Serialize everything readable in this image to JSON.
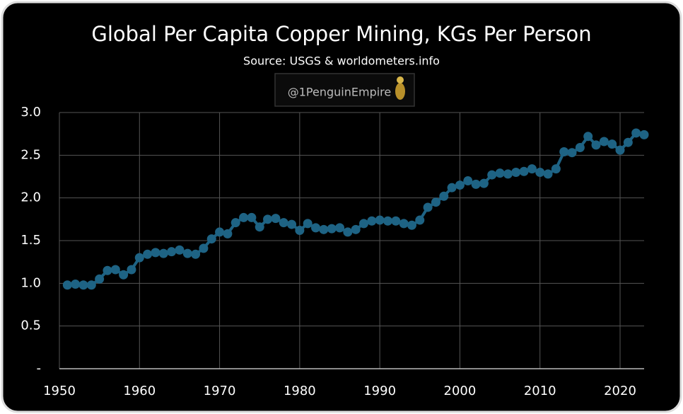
{
  "chart_data": {
    "type": "line",
    "title": "Global Per Capita Copper Mining, KGs Per Person",
    "subtitle": "Source: USGS & worldometers.info",
    "annotation": "@1PenguinEmpire",
    "x": [
      1951,
      1952,
      1953,
      1954,
      1955,
      1956,
      1957,
      1958,
      1959,
      1960,
      1961,
      1962,
      1963,
      1964,
      1965,
      1966,
      1967,
      1968,
      1969,
      1970,
      1971,
      1972,
      1973,
      1974,
      1975,
      1976,
      1977,
      1978,
      1979,
      1980,
      1981,
      1982,
      1983,
      1984,
      1985,
      1986,
      1987,
      1988,
      1989,
      1990,
      1991,
      1992,
      1993,
      1994,
      1995,
      1996,
      1997,
      1998,
      1999,
      2000,
      2001,
      2002,
      2003,
      2004,
      2005,
      2006,
      2007,
      2008,
      2009,
      2010,
      2011,
      2012,
      2013,
      2014,
      2015,
      2016,
      2017,
      2018,
      2019,
      2020,
      2021,
      2022,
      2023
    ],
    "series": [
      {
        "color": "#1e6384",
        "values": [
          0.98,
          0.99,
          0.98,
          0.98,
          1.05,
          1.15,
          1.16,
          1.1,
          1.16,
          1.3,
          1.34,
          1.36,
          1.35,
          1.37,
          1.39,
          1.35,
          1.34,
          1.41,
          1.52,
          1.6,
          1.58,
          1.71,
          1.77,
          1.77,
          1.66,
          1.75,
          1.76,
          1.71,
          1.69,
          1.62,
          1.7,
          1.65,
          1.63,
          1.64,
          1.65,
          1.6,
          1.63,
          1.7,
          1.73,
          1.74,
          1.73,
          1.73,
          1.7,
          1.68,
          1.74,
          1.89,
          1.95,
          2.02,
          2.12,
          2.15,
          2.2,
          2.16,
          2.17,
          2.27,
          2.29,
          2.28,
          2.3,
          2.31,
          2.34,
          2.3,
          2.28,
          2.34,
          2.54,
          2.53,
          2.59,
          2.72,
          2.62,
          2.66,
          2.63,
          2.56,
          2.65,
          2.76,
          2.74
        ]
      }
    ],
    "xlim": [
      1950,
      2023
    ],
    "xticks": [
      1950,
      1960,
      1970,
      1980,
      1990,
      2000,
      2010,
      2020
    ],
    "ylim": [
      0,
      3
    ],
    "yticks": [
      {
        "value": 0,
        "label": "-"
      },
      {
        "value": 0.5,
        "label": "0.5"
      },
      {
        "value": 1,
        "label": "1.0"
      },
      {
        "value": 1.5,
        "label": "1.5"
      },
      {
        "value": 2,
        "label": "2.0"
      },
      {
        "value": 2.5,
        "label": "2.5"
      },
      {
        "value": 3,
        "label": "3.0"
      }
    ],
    "grid": true
  }
}
